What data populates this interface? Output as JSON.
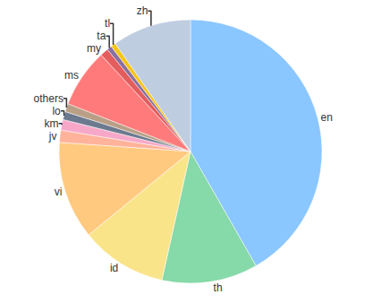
{
  "chart_data": {
    "type": "pie",
    "categories": [
      "en",
      "th",
      "id",
      "vi",
      "jv",
      "km",
      "lo",
      "others",
      "ms",
      "my",
      "ta",
      "tl",
      "zh"
    ],
    "values": [
      41.7,
      11.8,
      10.6,
      12.0,
      1.5,
      1.3,
      1.0,
      1.0,
      7.2,
      1.0,
      0.6,
      0.6,
      9.7
    ],
    "colors": [
      "#8ac6ff",
      "#86d9a8",
      "#fae48a",
      "#ffc980",
      "#ffb39a",
      "#f7a8c8",
      "#6c7a8f",
      "#b89f86",
      "#ff7b7b",
      "#e35d5d",
      "#8a6fa0",
      "#f5c518",
      "#bfcde0"
    ]
  }
}
